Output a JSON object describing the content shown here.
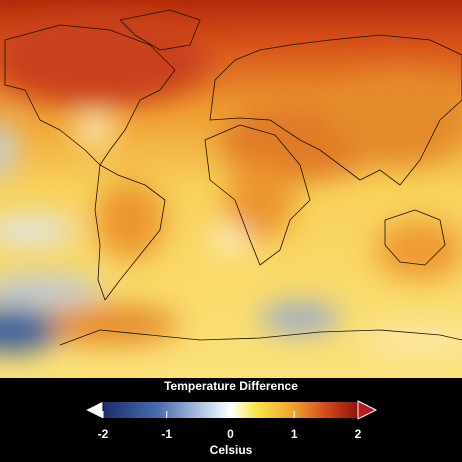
{
  "colorbar": {
    "title": "Temperature Difference",
    "label": "Celsius",
    "lim": [
      -2,
      2
    ],
    "ticks": [
      -2,
      -1,
      0,
      1,
      2
    ]
  }
}
